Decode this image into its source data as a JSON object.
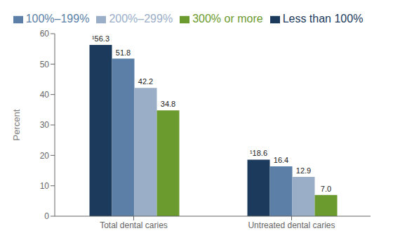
{
  "chart_data": {
    "type": "bar",
    "categories": [
      "Total dental caries",
      "Untreated dental caries"
    ],
    "series": [
      {
        "name": "Less than 100%",
        "color": "#1b3a5c",
        "values": [
          56.3,
          18.6
        ],
        "value_labels": [
          "¹56.3",
          "¹18.6"
        ]
      },
      {
        "name": "100%–199%",
        "color": "#5b7fa6",
        "values": [
          51.8,
          16.4
        ],
        "value_labels": [
          "51.8",
          "16.4"
        ]
      },
      {
        "name": "200%–299%",
        "color": "#9baec8",
        "values": [
          42.2,
          12.9
        ],
        "value_labels": [
          "42.2",
          "12.9"
        ]
      },
      {
        "name": "300% or more",
        "color": "#6b9a2e",
        "values": [
          34.8,
          7.0
        ],
        "value_labels": [
          "34.8",
          "7.0"
        ]
      }
    ],
    "ylabel": "Percent",
    "ylim": [
      0,
      60
    ],
    "yticks": [
      0,
      10,
      20,
      30,
      40,
      50,
      60
    ],
    "grid": false,
    "legend": "top",
    "data_labels": true
  }
}
